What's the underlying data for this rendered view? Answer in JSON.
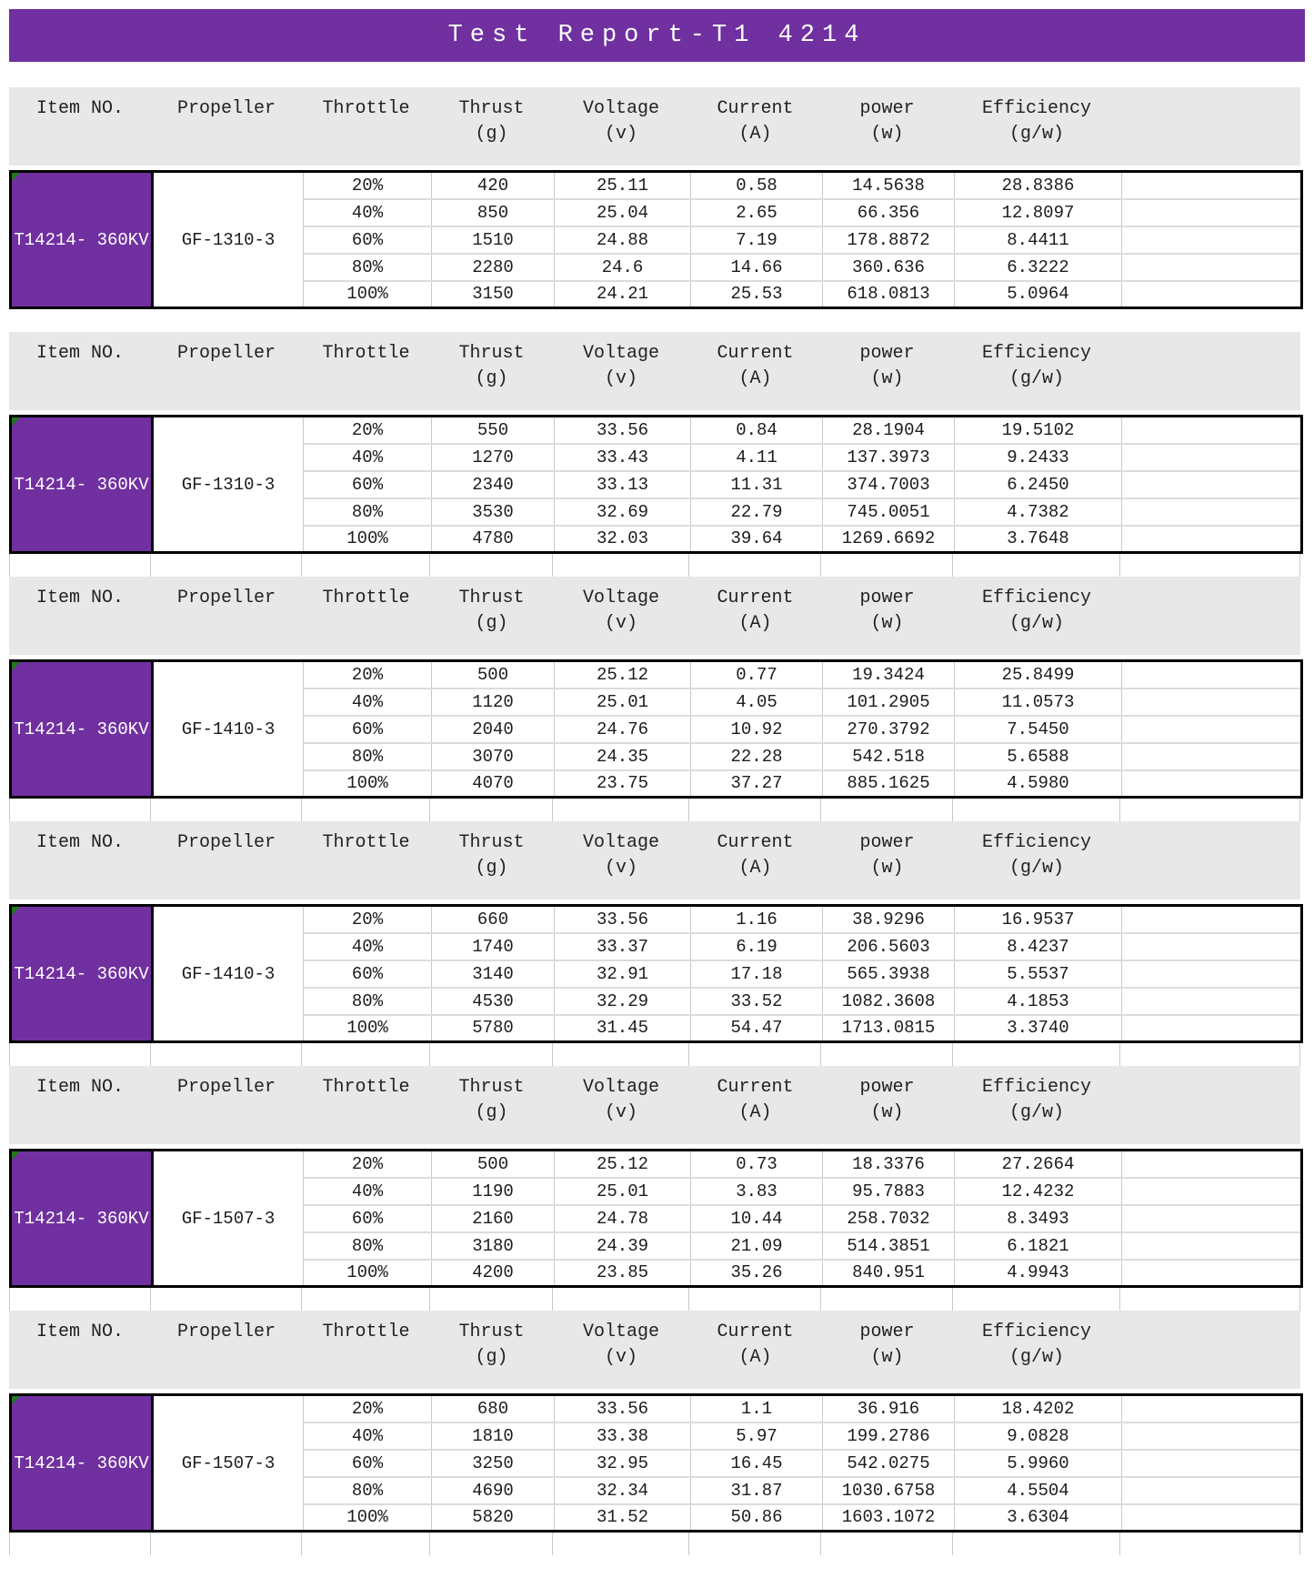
{
  "title": "Test Report-T1 4214",
  "columns": [
    {
      "label": "Item NO.",
      "unit": ""
    },
    {
      "label": "Propeller",
      "unit": ""
    },
    {
      "label": "Throttle",
      "unit": ""
    },
    {
      "label": "Thrust",
      "unit": "(g)"
    },
    {
      "label": "Voltage",
      "unit": "(v)"
    },
    {
      "label": "Current",
      "unit": "(A)"
    },
    {
      "label": "power",
      "unit": "(w)"
    },
    {
      "label": "Efficiency",
      "unit": "(g/w)"
    }
  ],
  "colors": {
    "accent_purple": "#7030A0",
    "header_gray": "#E8E8E8",
    "error_indicator_green": "#1F7A1F"
  },
  "sections": [
    {
      "item": "T14214-\n360KV",
      "propeller": "GF-1310-3",
      "rows": [
        {
          "throttle": "20%",
          "thrust": "420",
          "voltage": "25.11",
          "current": "0.58",
          "power": "14.5638",
          "efficiency": "28.8386"
        },
        {
          "throttle": "40%",
          "thrust": "850",
          "voltage": "25.04",
          "current": "2.65",
          "power": "66.356",
          "efficiency": "12.8097"
        },
        {
          "throttle": "60%",
          "thrust": "1510",
          "voltage": "24.88",
          "current": "7.19",
          "power": "178.8872",
          "efficiency": "8.4411"
        },
        {
          "throttle": "80%",
          "thrust": "2280",
          "voltage": "24.6",
          "current": "14.66",
          "power": "360.636",
          "efficiency": "6.3222"
        },
        {
          "throttle": "100%",
          "thrust": "3150",
          "voltage": "24.21",
          "current": "25.53",
          "power": "618.0813",
          "efficiency": "5.0964"
        }
      ]
    },
    {
      "item": "T14214-\n360KV",
      "propeller": "GF-1310-3",
      "rows": [
        {
          "throttle": "20%",
          "thrust": "550",
          "voltage": "33.56",
          "current": "0.84",
          "power": "28.1904",
          "efficiency": "19.5102"
        },
        {
          "throttle": "40%",
          "thrust": "1270",
          "voltage": "33.43",
          "current": "4.11",
          "power": "137.3973",
          "efficiency": "9.2433"
        },
        {
          "throttle": "60%",
          "thrust": "2340",
          "voltage": "33.13",
          "current": "11.31",
          "power": "374.7003",
          "efficiency": "6.2450"
        },
        {
          "throttle": "80%",
          "thrust": "3530",
          "voltage": "32.69",
          "current": "22.79",
          "power": "745.0051",
          "efficiency": "4.7382"
        },
        {
          "throttle": "100%",
          "thrust": "4780",
          "voltage": "32.03",
          "current": "39.64",
          "power": "1269.6692",
          "efficiency": "3.7648"
        }
      ]
    },
    {
      "item": "T14214-\n360KV",
      "propeller": "GF-1410-3",
      "rows": [
        {
          "throttle": "20%",
          "thrust": "500",
          "voltage": "25.12",
          "current": "0.77",
          "power": "19.3424",
          "efficiency": "25.8499"
        },
        {
          "throttle": "40%",
          "thrust": "1120",
          "voltage": "25.01",
          "current": "4.05",
          "power": "101.2905",
          "efficiency": "11.0573"
        },
        {
          "throttle": "60%",
          "thrust": "2040",
          "voltage": "24.76",
          "current": "10.92",
          "power": "270.3792",
          "efficiency": "7.5450"
        },
        {
          "throttle": "80%",
          "thrust": "3070",
          "voltage": "24.35",
          "current": "22.28",
          "power": "542.518",
          "efficiency": "5.6588"
        },
        {
          "throttle": "100%",
          "thrust": "4070",
          "voltage": "23.75",
          "current": "37.27",
          "power": "885.1625",
          "efficiency": "4.5980"
        }
      ]
    },
    {
      "item": "T14214-\n360KV",
      "propeller": "GF-1410-3",
      "rows": [
        {
          "throttle": "20%",
          "thrust": "660",
          "voltage": "33.56",
          "current": "1.16",
          "power": "38.9296",
          "efficiency": "16.9537"
        },
        {
          "throttle": "40%",
          "thrust": "1740",
          "voltage": "33.37",
          "current": "6.19",
          "power": "206.5603",
          "efficiency": "8.4237"
        },
        {
          "throttle": "60%",
          "thrust": "3140",
          "voltage": "32.91",
          "current": "17.18",
          "power": "565.3938",
          "efficiency": "5.5537"
        },
        {
          "throttle": "80%",
          "thrust": "4530",
          "voltage": "32.29",
          "current": "33.52",
          "power": "1082.3608",
          "efficiency": "4.1853"
        },
        {
          "throttle": "100%",
          "thrust": "5780",
          "voltage": "31.45",
          "current": "54.47",
          "power": "1713.0815",
          "efficiency": "3.3740"
        }
      ]
    },
    {
      "item": "T14214-\n360KV",
      "propeller": "GF-1507-3",
      "rows": [
        {
          "throttle": "20%",
          "thrust": "500",
          "voltage": "25.12",
          "current": "0.73",
          "power": "18.3376",
          "efficiency": "27.2664"
        },
        {
          "throttle": "40%",
          "thrust": "1190",
          "voltage": "25.01",
          "current": "3.83",
          "power": "95.7883",
          "efficiency": "12.4232"
        },
        {
          "throttle": "60%",
          "thrust": "2160",
          "voltage": "24.78",
          "current": "10.44",
          "power": "258.7032",
          "efficiency": "8.3493"
        },
        {
          "throttle": "80%",
          "thrust": "3180",
          "voltage": "24.39",
          "current": "21.09",
          "power": "514.3851",
          "efficiency": "6.1821"
        },
        {
          "throttle": "100%",
          "thrust": "4200",
          "voltage": "23.85",
          "current": "35.26",
          "power": "840.951",
          "efficiency": "4.9943"
        }
      ]
    },
    {
      "item": "T14214-\n360KV",
      "propeller": "GF-1507-3",
      "rows": [
        {
          "throttle": "20%",
          "thrust": "680",
          "voltage": "33.56",
          "current": "1.1",
          "power": "36.916",
          "efficiency": "18.4202"
        },
        {
          "throttle": "40%",
          "thrust": "1810",
          "voltage": "33.38",
          "current": "5.97",
          "power": "199.2786",
          "efficiency": "9.0828"
        },
        {
          "throttle": "60%",
          "thrust": "3250",
          "voltage": "32.95",
          "current": "16.45",
          "power": "542.0275",
          "efficiency": "5.9960"
        },
        {
          "throttle": "80%",
          "thrust": "4690",
          "voltage": "32.34",
          "current": "31.87",
          "power": "1030.6758",
          "efficiency": "4.5504"
        },
        {
          "throttle": "100%",
          "thrust": "5820",
          "voltage": "31.52",
          "current": "50.86",
          "power": "1603.1072",
          "efficiency": "3.6304"
        }
      ]
    }
  ]
}
